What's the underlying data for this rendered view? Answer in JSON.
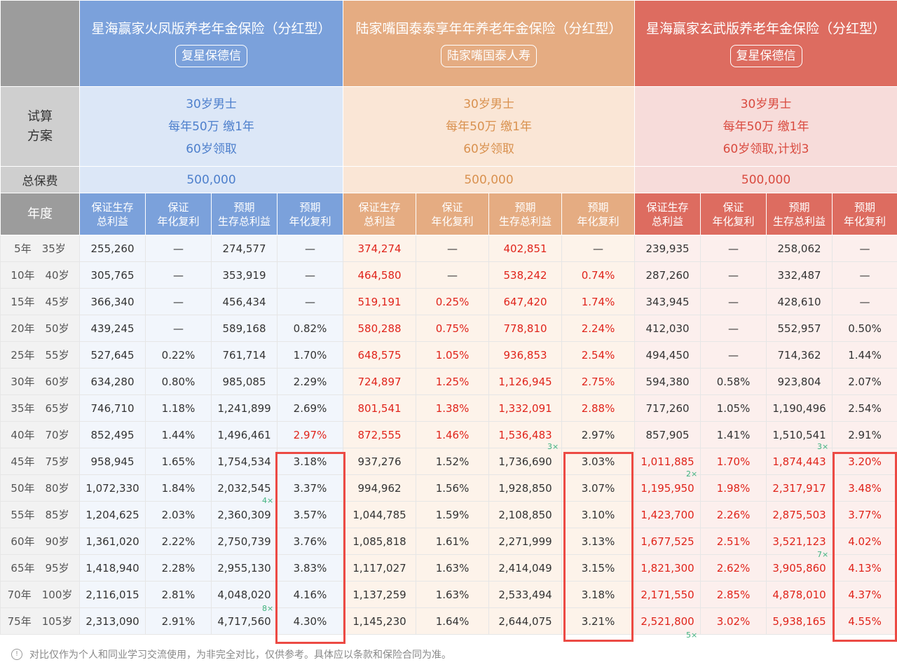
{
  "products": [
    {
      "name": "星海赢家火凤版养老年金保险（分红型）",
      "company": "复星保德信",
      "plan": [
        "30岁男士",
        "每年50万 缴1年",
        "60岁领取"
      ],
      "premium": "500,000"
    },
    {
      "name": "陆家嘴国泰泰享年年养老年金保险（分红型）",
      "company": "陆家嘴国泰人寿",
      "plan": [
        "30岁男士",
        "每年50万 缴1年",
        "60岁领取"
      ],
      "premium": "500,000"
    },
    {
      "name": "星海赢家玄武版养老年金保险（分红型）",
      "company": "复星保德信",
      "plan": [
        "30岁男士",
        "每年50万 缴1年",
        "60岁领取,计划3"
      ],
      "premium": "500,000"
    }
  ],
  "labels": {
    "plan": "试算\n方案",
    "premium": "总保费",
    "year": "年度"
  },
  "columns": [
    "保证生存\n总利益",
    "保证\n年化复利",
    "预期\n生存总利益",
    "预期\n年化复利"
  ],
  "rows": [
    {
      "year": "5年　35岁",
      "b": [
        "255,260",
        "—",
        "274,577",
        "—"
      ],
      "o": [
        "374,274",
        "—",
        "402,851",
        "—"
      ],
      "r": [
        "239,935",
        "—",
        "258,062",
        "—"
      ]
    },
    {
      "year": "10年　40岁",
      "b": [
        "305,765",
        "—",
        "353,919",
        "—"
      ],
      "o": [
        "464,580",
        "—",
        "538,242",
        "0.74%"
      ],
      "r": [
        "287,260",
        "—",
        "332,487",
        "—"
      ]
    },
    {
      "year": "15年　45岁",
      "b": [
        "366,340",
        "—",
        "456,434",
        "—"
      ],
      "o": [
        "519,191",
        "0.25%",
        "647,420",
        "1.74%"
      ],
      "r": [
        "343,945",
        "—",
        "428,610",
        "—"
      ]
    },
    {
      "year": "20年　50岁",
      "b": [
        "439,245",
        "—",
        "589,168",
        "0.82%"
      ],
      "o": [
        "580,288",
        "0.75%",
        "778,810",
        "2.24%"
      ],
      "r": [
        "412,030",
        "—",
        "552,957",
        "0.50%"
      ]
    },
    {
      "year": "25年　55岁",
      "b": [
        "527,645",
        "0.22%",
        "761,714",
        "1.70%"
      ],
      "o": [
        "648,575",
        "1.05%",
        "936,853",
        "2.54%"
      ],
      "r": [
        "494,450",
        "—",
        "714,362",
        "1.44%"
      ]
    },
    {
      "year": "30年　60岁",
      "b": [
        "634,280",
        "0.80%",
        "985,085",
        "2.29%"
      ],
      "o": [
        "724,897",
        "1.25%",
        "1,126,945",
        "2.75%"
      ],
      "r": [
        "594,380",
        "0.58%",
        "923,804",
        "2.07%"
      ]
    },
    {
      "year": "35年　65岁",
      "b": [
        "746,710",
        "1.18%",
        "1,241,899",
        "2.69%"
      ],
      "o": [
        "801,541",
        "1.38%",
        "1,332,091",
        "2.88%"
      ],
      "r": [
        "717,260",
        "1.05%",
        "1,190,496",
        "2.54%"
      ]
    },
    {
      "year": "40年　70岁",
      "b": [
        "852,495",
        "1.44%",
        "1,496,461",
        "2.97%"
      ],
      "o": [
        "872,555",
        "1.46%",
        "1,536,483",
        "2.97%"
      ],
      "r": [
        "857,905",
        "1.41%",
        "1,510,541",
        "2.91%"
      ]
    },
    {
      "year": "45年　75岁",
      "b": [
        "958,945",
        "1.65%",
        "1,754,534",
        "3.18%"
      ],
      "o": [
        "937,276",
        "1.52%",
        "1,736,690",
        "3.03%"
      ],
      "r": [
        "1,011,885",
        "1.70%",
        "1,874,443",
        "3.20%"
      ]
    },
    {
      "year": "50年　80岁",
      "b": [
        "1,072,330",
        "1.84%",
        "2,032,545",
        "3.37%"
      ],
      "o": [
        "994,962",
        "1.56%",
        "1,928,850",
        "3.07%"
      ],
      "r": [
        "1,195,950",
        "1.98%",
        "2,317,917",
        "3.48%"
      ]
    },
    {
      "year": "55年　85岁",
      "b": [
        "1,204,625",
        "2.03%",
        "2,360,309",
        "3.57%"
      ],
      "o": [
        "1,044,785",
        "1.59%",
        "2,108,850",
        "3.10%"
      ],
      "r": [
        "1,423,700",
        "2.26%",
        "2,875,503",
        "3.77%"
      ]
    },
    {
      "year": "60年　90岁",
      "b": [
        "1,361,020",
        "2.22%",
        "2,750,739",
        "3.76%"
      ],
      "o": [
        "1,085,818",
        "1.61%",
        "2,271,999",
        "3.13%"
      ],
      "r": [
        "1,677,525",
        "2.51%",
        "3,521,123",
        "4.02%"
      ]
    },
    {
      "year": "65年　95岁",
      "b": [
        "1,418,940",
        "2.28%",
        "2,955,130",
        "3.83%"
      ],
      "o": [
        "1,117,027",
        "1.63%",
        "2,414,049",
        "3.15%"
      ],
      "r": [
        "1,821,300",
        "2.62%",
        "3,905,860",
        "4.13%"
      ]
    },
    {
      "year": "70年　100岁",
      "b": [
        "2,116,015",
        "2.81%",
        "4,048,020",
        "4.16%"
      ],
      "o": [
        "1,137,259",
        "1.63%",
        "2,533,494",
        "3.18%"
      ],
      "r": [
        "2,171,550",
        "2.85%",
        "4,878,010",
        "4.37%"
      ]
    },
    {
      "year": "75年　105岁",
      "b": [
        "2,313,090",
        "2.91%",
        "4,717,560",
        "4.30%"
      ],
      "o": [
        "1,145,230",
        "1.64%",
        "2,644,075",
        "3.21%"
      ],
      "r": [
        "2,521,800",
        "3.02%",
        "5,938,165",
        "4.55%"
      ]
    }
  ],
  "red_cells": {
    "b": [
      [
        7,
        3
      ]
    ],
    "o": "rows0-7",
    "r": [
      [
        8,
        0
      ],
      [
        9,
        0
      ],
      [
        10,
        0
      ],
      [
        11,
        0
      ],
      [
        12,
        0
      ],
      [
        13,
        0
      ],
      [
        14,
        0
      ],
      [
        8,
        1
      ],
      [
        9,
        1
      ],
      [
        10,
        1
      ],
      [
        11,
        1
      ],
      [
        12,
        1
      ],
      [
        13,
        1
      ],
      [
        14,
        1
      ],
      [
        8,
        2
      ],
      [
        9,
        2
      ],
      [
        10,
        2
      ],
      [
        11,
        2
      ],
      [
        12,
        2
      ],
      [
        13,
        2
      ],
      [
        14,
        2
      ],
      [
        8,
        3
      ],
      [
        9,
        3
      ],
      [
        10,
        3
      ],
      [
        11,
        3
      ],
      [
        12,
        3
      ],
      [
        13,
        3
      ],
      [
        14,
        3
      ]
    ]
  },
  "multiples": [
    "3×",
    "3×",
    "2×",
    "4×",
    "7×",
    "8×",
    "5×"
  ],
  "footer": "对比仅作为个人和同业学习交流使用，为非完全对比，仅供参考。具体应以条款和保险合同为准。",
  "colors": {
    "blue": "#7ba1db",
    "orange": "#e5ac82",
    "red": "#dd6c60",
    "highlight": "#e0241b",
    "box": "#ec4a44"
  }
}
